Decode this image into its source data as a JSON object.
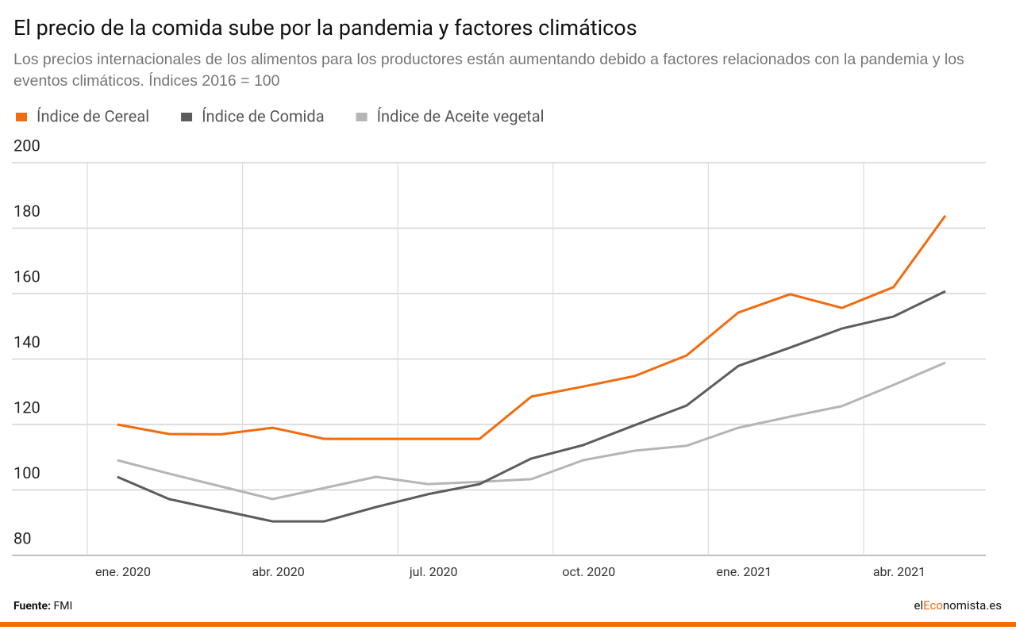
{
  "chart_data": {
    "type": "line",
    "title": "El precio de la comida sube por la pandemia y factores climáticos",
    "subtitle": "Los precios internacionales de los alimentos para los productores están aumentando debido a factores relacionados con la pandemia y los eventos climáticos. Índices 2016 = 100",
    "x": [
      "2020-01",
      "2020-02",
      "2020-03",
      "2020-04",
      "2020-05",
      "2020-06",
      "2020-07",
      "2020-08",
      "2020-09",
      "2020-10",
      "2020-11",
      "2020-12",
      "2021-01",
      "2021-02",
      "2021-03",
      "2021-04",
      "2021-05"
    ],
    "xticks": [
      {
        "value": "2020-01",
        "label": "ene. 2020"
      },
      {
        "value": "2020-04",
        "label": "abr. 2020"
      },
      {
        "value": "2020-07",
        "label": "jul. 2020"
      },
      {
        "value": "2020-10",
        "label": "oct. 2020"
      },
      {
        "value": "2021-01",
        "label": "ene. 2021"
      },
      {
        "value": "2021-04",
        "label": "abr. 2021"
      }
    ],
    "series": [
      {
        "name": "Índice de Cereal",
        "color": "#f26b0f",
        "values": [
          120,
          117.1,
          117,
          119,
          115.6,
          115.6,
          115.6,
          115.6,
          128.5,
          131.6,
          134.8,
          141.1,
          154.2,
          159.8,
          155.6,
          162,
          183.8
        ]
      },
      {
        "name": "Índice de Comida",
        "color": "#5c5c5c",
        "values": [
          104,
          97.2,
          93.8,
          90.4,
          90.4,
          94.8,
          98.7,
          101.8,
          109.6,
          113.7,
          119.8,
          125.8,
          137.9,
          143.5,
          149.3,
          153,
          160.7
        ]
      },
      {
        "name": "Índice de Aceite vegetal",
        "color": "#b5b5b5",
        "values": [
          109.1,
          105,
          101.1,
          97.2,
          100.6,
          104,
          101.8,
          102.5,
          103.3,
          109.1,
          112,
          113.5,
          119,
          122.4,
          125.6,
          132.1,
          138.9
        ]
      }
    ],
    "ylim": [
      80,
      200
    ],
    "yticks": [
      80,
      100,
      120,
      140,
      160,
      180,
      200
    ],
    "grid": true,
    "legend": "top",
    "source_label": "Fuente:",
    "source": "FMI",
    "brand": [
      "el",
      "Eco",
      "nomista.es"
    ],
    "brand_color": "#f26b0f"
  }
}
